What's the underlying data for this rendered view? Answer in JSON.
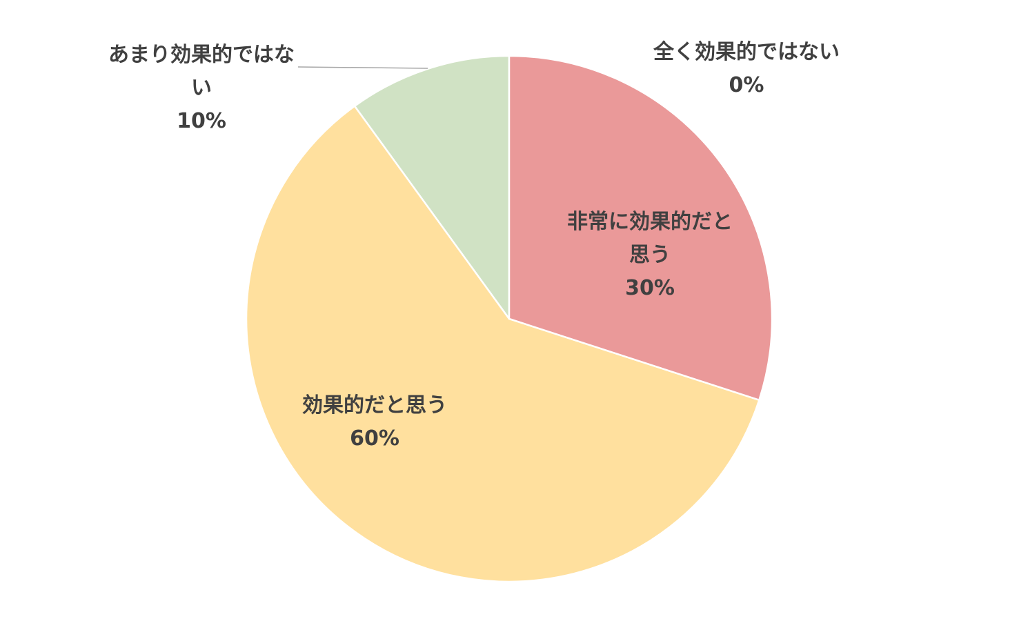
{
  "chart_data": {
    "type": "pie",
    "categories": [
      "非常に効果的だと思う",
      "効果的だと思う",
      "あまり効果的ではない",
      "全く効果的ではない"
    ],
    "values": [
      30,
      60,
      10,
      0
    ],
    "value_labels": [
      "30%",
      "60%",
      "10%",
      "0%"
    ],
    "colors": [
      "#ea9999",
      "#ffe09e",
      "#d0e2c4",
      "#bfbfbf"
    ]
  }
}
